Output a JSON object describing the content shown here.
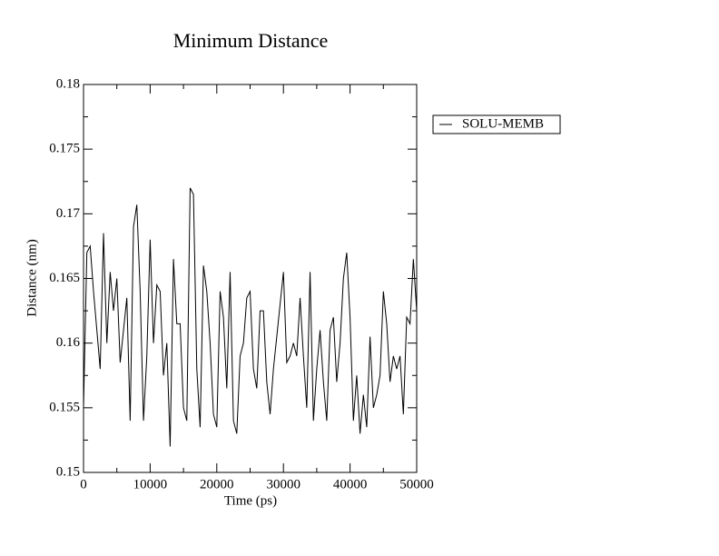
{
  "chart_data": {
    "type": "line",
    "title": "Minimum Distance",
    "x_label": "Time (ps)",
    "y_label": "Distance (nm)",
    "x": [
      0,
      500,
      1000,
      1500,
      2000,
      2500,
      3000,
      3500,
      4000,
      4500,
      5000,
      5500,
      6000,
      6500,
      7000,
      7500,
      8000,
      8500,
      9000,
      9500,
      10000,
      10500,
      11000,
      11500,
      12000,
      12500,
      13000,
      13500,
      14000,
      14500,
      15000,
      15500,
      16000,
      16500,
      17000,
      17500,
      18000,
      18500,
      19000,
      19500,
      20000,
      20500,
      21000,
      21500,
      22000,
      22500,
      23000,
      23500,
      24000,
      24500,
      25000,
      25500,
      26000,
      26500,
      27000,
      27500,
      28000,
      28500,
      29000,
      29500,
      30000,
      30500,
      31000,
      31500,
      32000,
      32500,
      33000,
      33500,
      34000,
      34500,
      35000,
      35500,
      36000,
      36500,
      37000,
      37500,
      38000,
      38500,
      39000,
      39500,
      40000,
      40500,
      41000,
      41500,
      42000,
      42500,
      43000,
      43500,
      44000,
      44500,
      45000,
      45500,
      46000,
      46500,
      47000,
      47500,
      48000,
      48500,
      49000,
      49500,
      50000
    ],
    "series": [
      {
        "name": "SOLU-MEMB",
        "color": "#000000",
        "values": [
          0.155,
          0.167,
          0.1675,
          0.164,
          0.161,
          0.158,
          0.1685,
          0.16,
          0.1655,
          0.1625,
          0.165,
          0.1585,
          0.161,
          0.1635,
          0.154,
          0.169,
          0.1707,
          0.164,
          0.154,
          0.159,
          0.168,
          0.16,
          0.1645,
          0.164,
          0.1575,
          0.16,
          0.152,
          0.1665,
          0.1615,
          0.1615,
          0.155,
          0.154,
          0.172,
          0.1715,
          0.158,
          0.1535,
          0.166,
          0.164,
          0.16,
          0.1545,
          0.1535,
          0.164,
          0.162,
          0.1565,
          0.1655,
          0.154,
          0.153,
          0.159,
          0.16,
          0.1635,
          0.164,
          0.158,
          0.1565,
          0.1625,
          0.1625,
          0.157,
          0.1545,
          0.158,
          0.1605,
          0.163,
          0.1655,
          0.1585,
          0.159,
          0.16,
          0.159,
          0.1635,
          0.159,
          0.155,
          0.1655,
          0.154,
          0.158,
          0.161,
          0.157,
          0.154,
          0.161,
          0.162,
          0.157,
          0.16,
          0.165,
          0.167,
          0.162,
          0.154,
          0.1575,
          0.153,
          0.156,
          0.1535,
          0.1605,
          0.155,
          0.156,
          0.1575,
          0.164,
          0.1615,
          0.157,
          0.159,
          0.158,
          0.159,
          0.1545,
          0.162,
          0.1615,
          0.1665,
          0.1625
        ]
      }
    ],
    "xlim": [
      0,
      50000
    ],
    "xticks": [
      0,
      10000,
      20000,
      30000,
      40000,
      50000
    ],
    "xminorticks": [
      5000,
      15000,
      25000,
      35000,
      45000
    ],
    "ylim": [
      0.15,
      0.18
    ],
    "yticks": [
      0.15,
      0.155,
      0.16,
      0.165,
      0.17,
      0.175,
      0.18
    ],
    "yminorticks": [
      0.1525,
      0.1575,
      0.1625,
      0.1675,
      0.1725,
      0.1775
    ],
    "legend": "upper right outside"
  }
}
